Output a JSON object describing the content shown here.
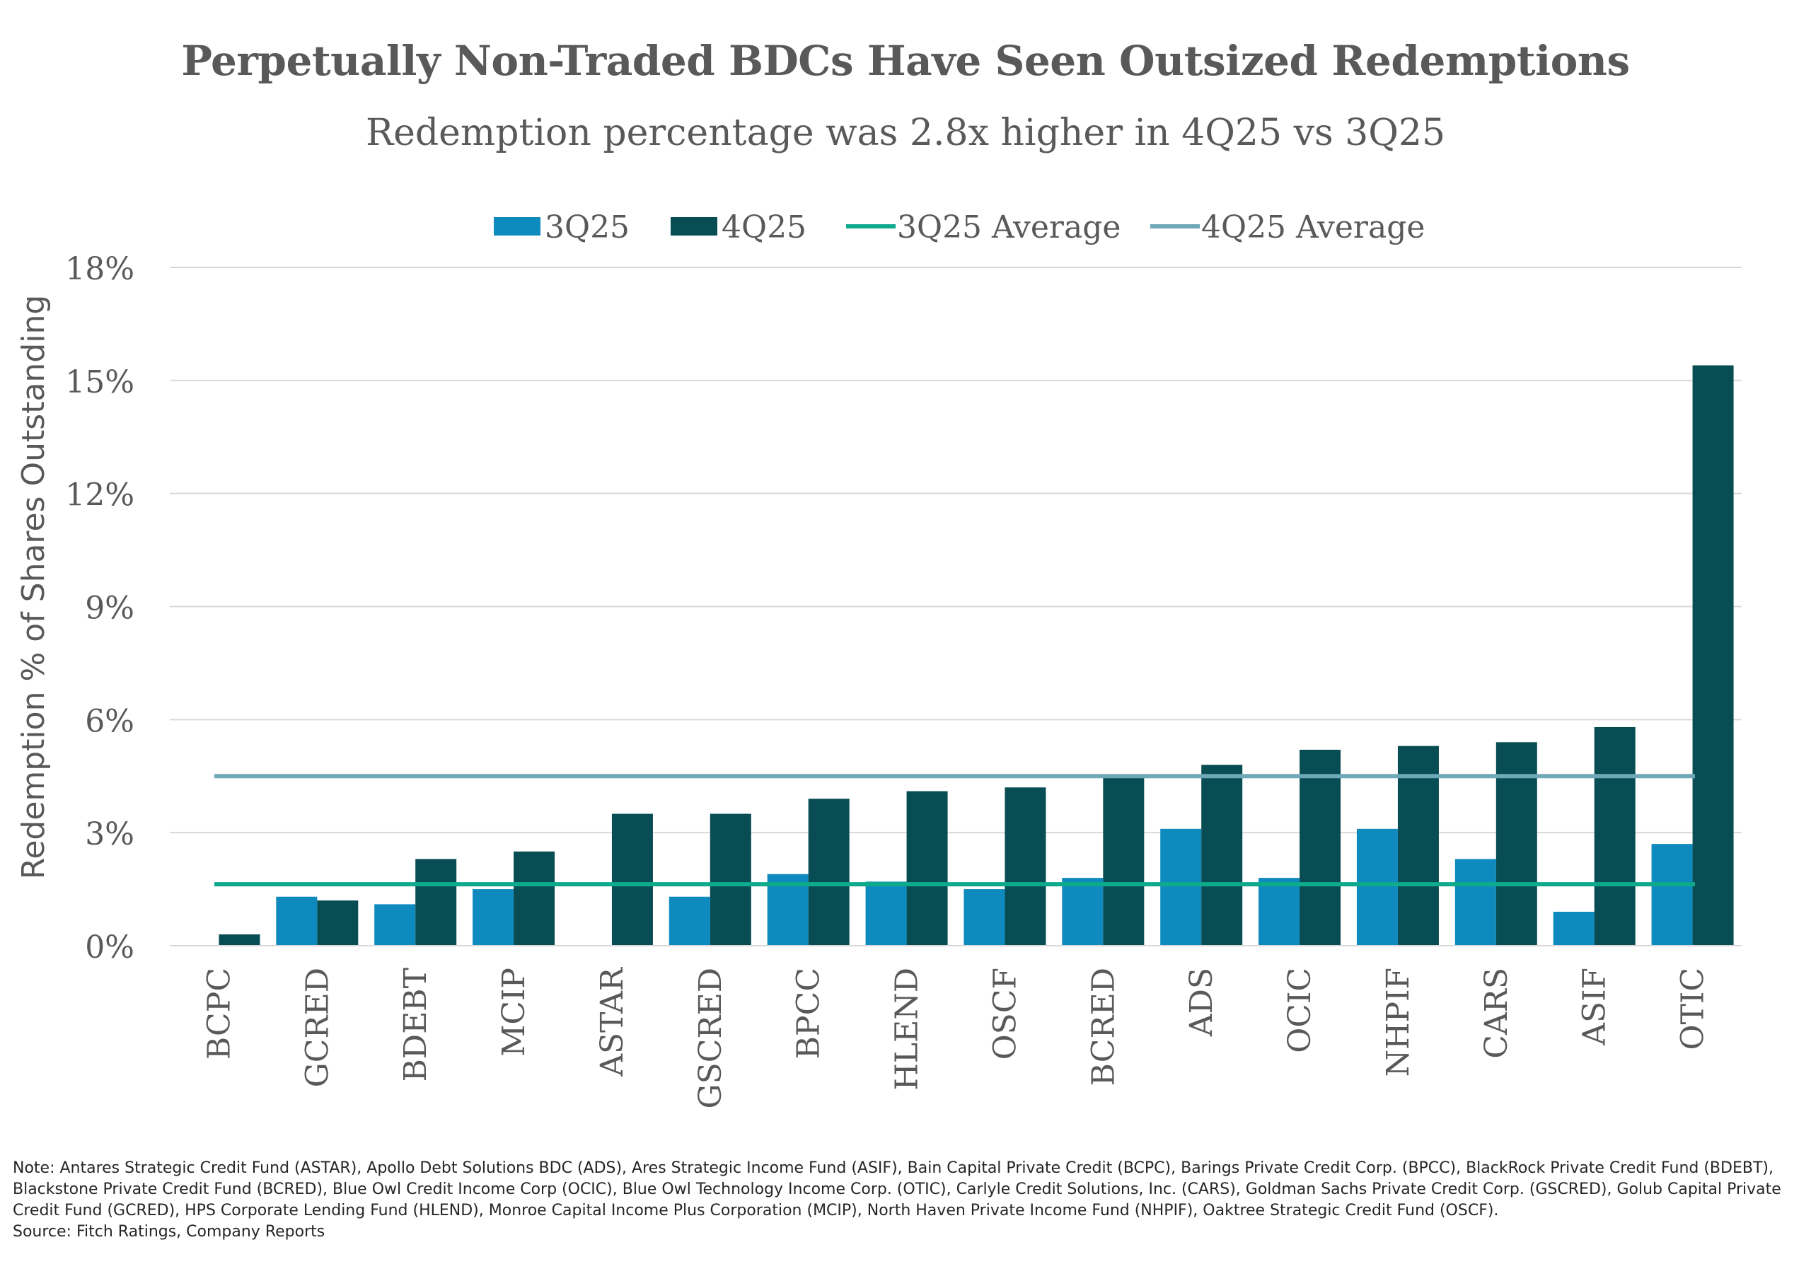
{
  "chart_data": {
    "type": "bar",
    "title": "Perpetually Non-Traded BDCs Have Seen Outsized Redemptions",
    "subtitle": "Redemption percentage was 2.8x higher in 4Q25 vs 3Q25",
    "xlabel": "",
    "ylabel": "Redemption % of Shares Outstanding",
    "ylim": [
      0,
      18
    ],
    "yticks": [
      0,
      3,
      6,
      9,
      12,
      15,
      18
    ],
    "ytick_labels": [
      "0%",
      "3%",
      "6%",
      "9%",
      "12%",
      "15%",
      "18%"
    ],
    "grid": true,
    "legend_position": "top-center",
    "categories": [
      "BCPC",
      "GCRED",
      "BDEBT",
      "MCIP",
      "ASTAR",
      "GSCRED",
      "BPCC",
      "HLEND",
      "OSCF",
      "BCRED",
      "ADS",
      "OCIC",
      "NHPIF",
      "CARS",
      "ASIF",
      "OTIC"
    ],
    "series": [
      {
        "name": "3Q25",
        "color": "#0E8ABF",
        "values": [
          0,
          1.3,
          1.1,
          1.5,
          0,
          1.3,
          1.9,
          1.7,
          1.5,
          1.8,
          3.1,
          1.8,
          3.1,
          2.3,
          0.9,
          2.7
        ]
      },
      {
        "name": "4Q25",
        "color": "#084D54",
        "values": [
          0.3,
          1.2,
          2.3,
          2.5,
          3.5,
          3.5,
          3.9,
          4.1,
          4.2,
          4.5,
          4.8,
          5.2,
          5.3,
          5.4,
          5.8,
          15.4
        ]
      }
    ],
    "reference_lines": [
      {
        "name": "3Q25 Average",
        "color": "#0DAA8C",
        "value": 1.63
      },
      {
        "name": "4Q25 Average",
        "color": "#6FA8B7",
        "value": 4.5
      }
    ]
  },
  "footnote": {
    "note": "Note: Antares Strategic Credit Fund (ASTAR), Apollo Debt Solutions BDC (ADS), Ares Strategic Income Fund (ASIF), Bain Capital Private Credit (BCPC), Barings Private Credit Corp. (BPCC), BlackRock Private Credit Fund (BDEBT), Blackstone Private Credit Fund (BCRED), Blue Owl Credit Income Corp (OCIC), Blue Owl Technology Income Corp. (OTIC), Carlyle Credit Solutions, Inc. (CARS), Goldman Sachs Private Credit Corp. (GSCRED), Golub Capital Private Credit Fund (GCRED), HPS Corporate Lending Fund (HLEND), Monroe Capital Income Plus Corporation (MCIP), North Haven Private Income Fund (NHPIF), Oaktree Strategic Credit Fund (OSCF).",
    "source": "Source: Fitch Ratings, Company Reports"
  }
}
